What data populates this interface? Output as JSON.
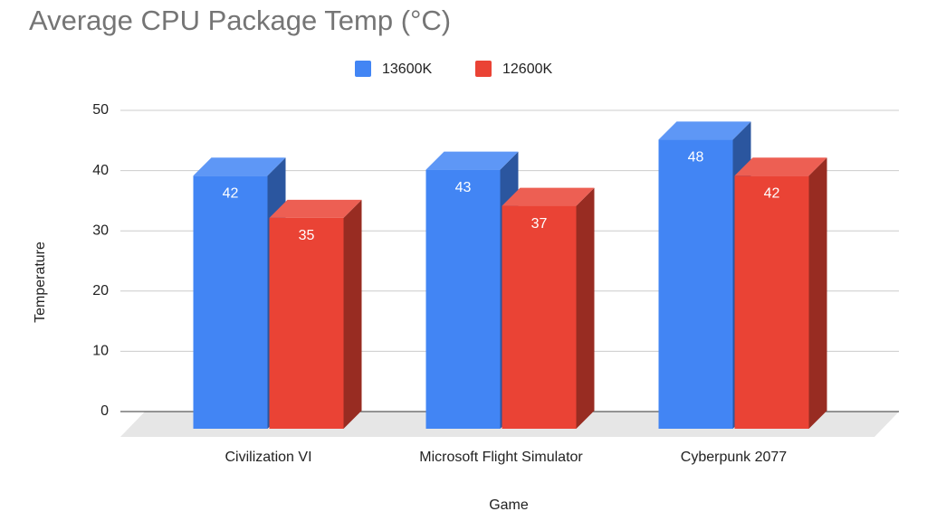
{
  "chart_data": {
    "type": "bar3d",
    "title": "Average CPU Package Temp (°C)",
    "x_label": "Game",
    "y_label": "Temperature",
    "categories": [
      "Civilization VI",
      "Microsoft Flight Simulator",
      "Cyberpunk 2077"
    ],
    "series": [
      {
        "name": "13600K",
        "color": "#4285f4",
        "values": [
          42,
          43,
          48
        ]
      },
      {
        "name": "12600K",
        "color": "#ea4335",
        "values": [
          35,
          37,
          42
        ]
      }
    ],
    "ylim": [
      0,
      50
    ],
    "yticks": [
      0,
      10,
      20,
      30,
      40,
      50
    ],
    "grid": true,
    "legend": "top"
  }
}
